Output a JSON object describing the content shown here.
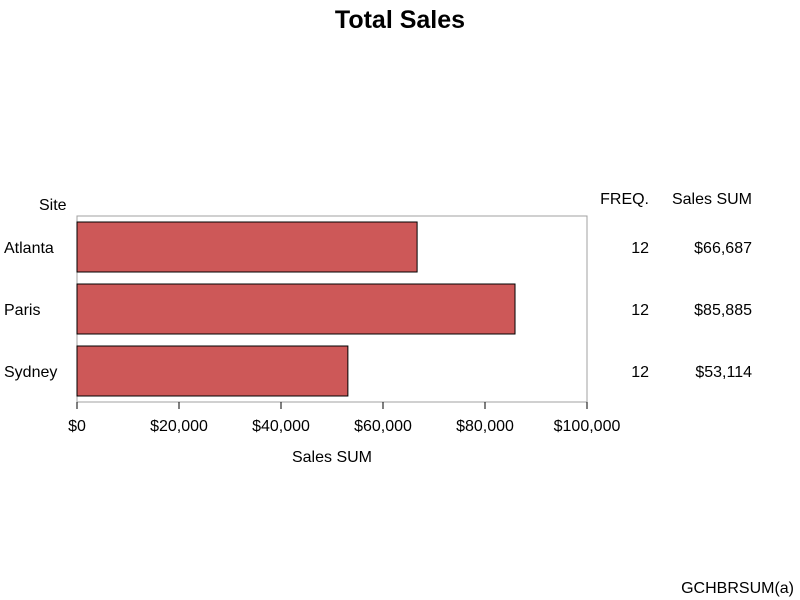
{
  "chart_data": {
    "type": "bar",
    "orientation": "horizontal",
    "title": "Total Sales",
    "category_label": "Site",
    "categories": [
      "Atlanta",
      "Paris",
      "Sydney"
    ],
    "values": [
      66687,
      85885,
      53114
    ],
    "value_labels": [
      "$66,687",
      "$85,885",
      "$53,114"
    ],
    "xlabel": "Sales SUM",
    "xlim": [
      0,
      100000
    ],
    "x_ticks": [
      0,
      20000,
      40000,
      60000,
      80000,
      100000
    ],
    "x_tick_labels": [
      "$0",
      "$20,000",
      "$40,000",
      "$60,000",
      "$80,000",
      "$100,000"
    ],
    "grid": false,
    "table": {
      "columns": [
        "FREQ.",
        "Sales SUM"
      ],
      "freq": [
        "12",
        "12",
        "12"
      ],
      "sum": [
        "$66,687",
        "$85,885",
        "$53,114"
      ]
    }
  },
  "colors": {
    "bar_fill": "#cd5858",
    "bar_stroke": "#000000",
    "frame": "#a0a0a0"
  },
  "footnote": "GCHBRSUM(a)"
}
